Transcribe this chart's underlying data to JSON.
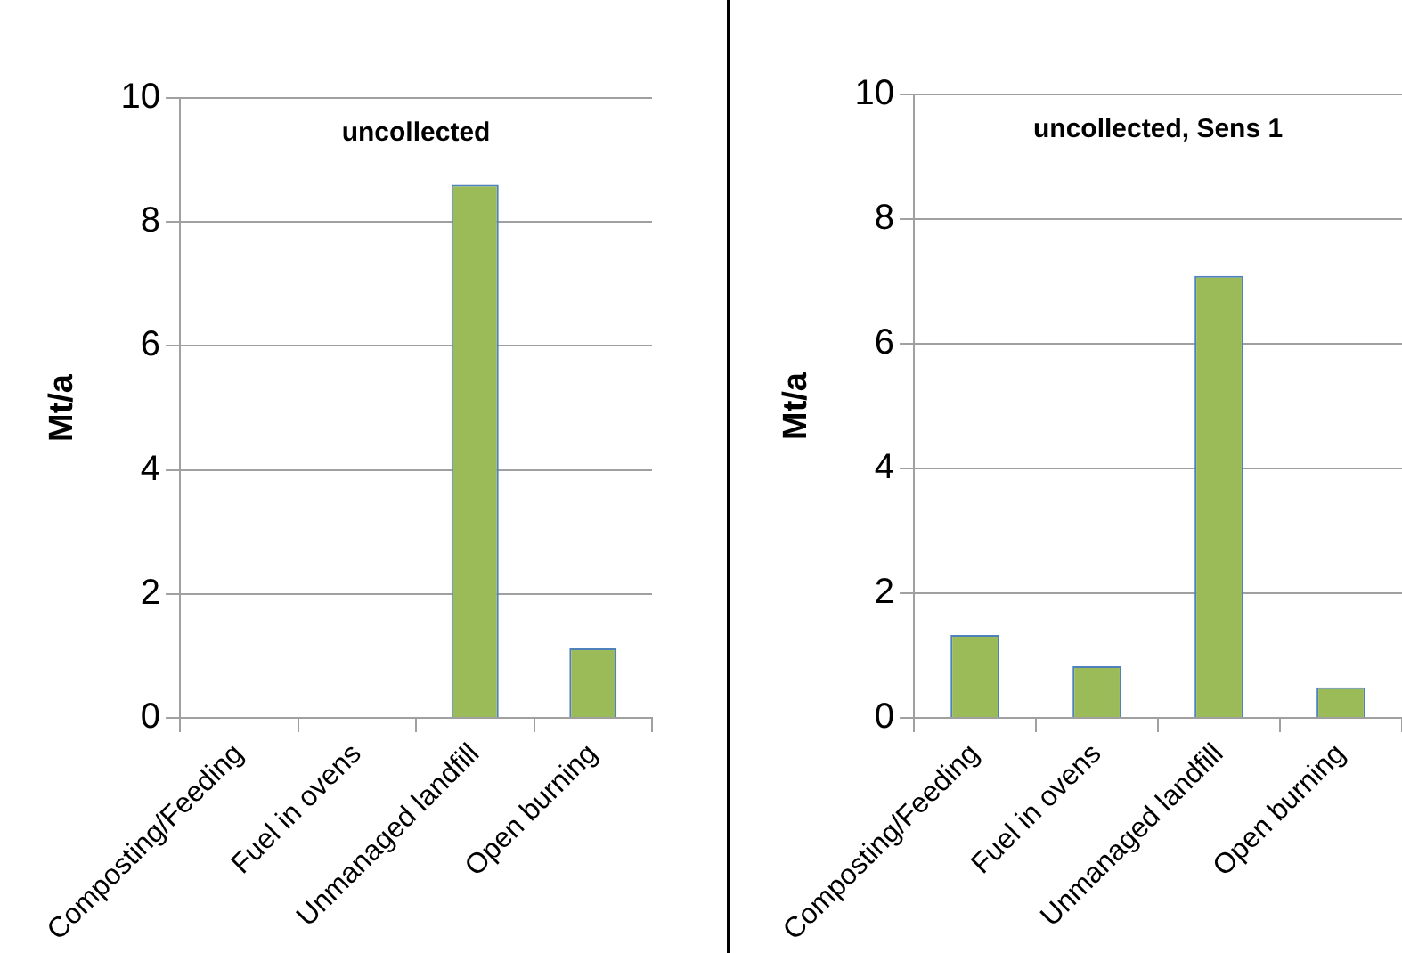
{
  "chart_data": [
    {
      "type": "bar",
      "title": "uncollected",
      "ylabel": "Mt/a",
      "categories": [
        "Composting/Feeding",
        "Fuel in ovens",
        "Unmanaged landfill",
        "Open burning"
      ],
      "values": [
        0,
        0,
        8.6,
        1.12
      ],
      "color": "#9bbb59",
      "ylim": [
        0,
        10
      ],
      "yticks": [
        0,
        2,
        4,
        6,
        8,
        10
      ],
      "grid": "y",
      "legend": false
    },
    {
      "type": "bar",
      "title": "uncollected, Sens 1",
      "ylabel": "Mt/a",
      "categories": [
        "Composting/Feeding",
        "Fuel in ovens",
        "Unmanaged landfill",
        "Open burning"
      ],
      "values": [
        1.33,
        0.83,
        7.09,
        0.49
      ],
      "color": "#9bbb59",
      "ylim": [
        0,
        10
      ],
      "yticks": [
        0,
        2,
        4,
        6,
        8,
        10
      ],
      "grid": "y",
      "legend": false
    }
  ]
}
